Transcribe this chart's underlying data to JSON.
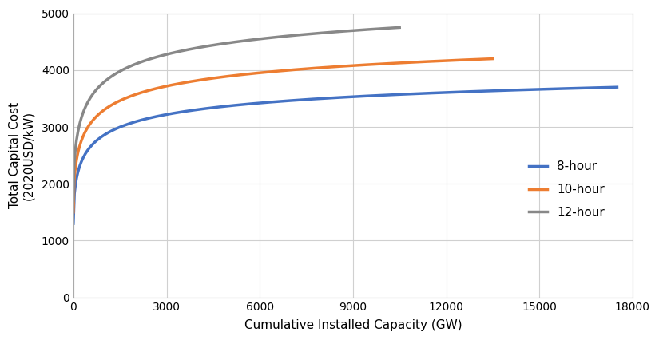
{
  "title": "",
  "xlabel": "Cumulative Installed Capacity (GW)",
  "ylabel": "Total Capital Cost\n(2020USD/kW)",
  "xlim": [
    0,
    18000
  ],
  "ylim": [
    0,
    5000
  ],
  "xticks": [
    0,
    3000,
    6000,
    9000,
    12000,
    15000,
    18000
  ],
  "yticks": [
    0,
    1000,
    2000,
    3000,
    4000,
    5000
  ],
  "series": [
    {
      "label": "8-hour",
      "color": "#4472C4",
      "x_end": 17500,
      "y_start": 1300,
      "y_end": 3700,
      "log_scale": 300,
      "exponent": 0.42
    },
    {
      "label": "10-hour",
      "color": "#ED7D31",
      "x_end": 13500,
      "y_start": 1500,
      "y_end": 4200,
      "log_scale": 300,
      "exponent": 0.42
    },
    {
      "label": "12-hour",
      "color": "#888888",
      "x_end": 10500,
      "y_start": 1700,
      "y_end": 4750,
      "log_scale": 300,
      "exponent": 0.42
    }
  ],
  "legend_loc": "center right",
  "background_color": "#ffffff",
  "grid_color": "#d0d0d0",
  "linewidth": 2.5
}
